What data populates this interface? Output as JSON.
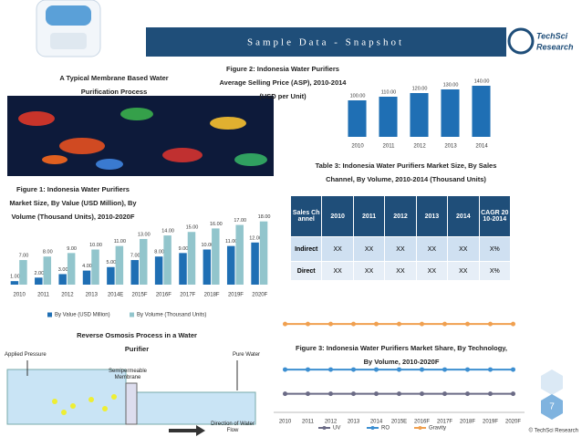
{
  "header": {
    "title": "Sample Data - Snapshot"
  },
  "logo": {
    "line1": "TechSci",
    "line2": "Research"
  },
  "captions": {
    "membrane": "A Typical Membrane Based Water Purification Process",
    "ro": "Reverse Osmosis Process in a Water Purifier"
  },
  "ro_diagram": {
    "applied_pressure": "Applied Pressure",
    "membrane": "Semipermeable Membrane",
    "pure_water": "Pure Water",
    "flow": "Direction of Water Flow"
  },
  "chart_data": [
    {
      "type": "bar",
      "title": "Figure 1: Indonesia Water Purifiers Market Size, By Value (USD Million), By Volume (Thousand Units), 2010-2020F",
      "categories": [
        "2010",
        "2011",
        "2012",
        "2013",
        "2014E",
        "2015F",
        "2016F",
        "2017F",
        "2018F",
        "2019F",
        "2020F"
      ],
      "series": [
        {
          "name": "By Value (USD Million)",
          "color": "#1f6fb4",
          "values": [
            1,
            2,
            3,
            4,
            5,
            7,
            8,
            9,
            10,
            11,
            12
          ],
          "value_labels": [
            "1.00",
            "2.00",
            "3.00",
            "4.00",
            "5.00",
            "7.00",
            "8.00",
            "9.00",
            "10.00",
            "11.00",
            "12.00"
          ]
        },
        {
          "name": "By Volume (Thousand Units)",
          "color": "#92c5cc",
          "values": [
            7,
            8,
            9,
            10,
            11,
            13,
            14,
            15,
            16,
            17,
            18
          ],
          "value_labels": [
            "7.00",
            "8.00",
            "9.00",
            "10.00",
            "11.00",
            "13.00",
            "14.00",
            "15.00",
            "16.00",
            "17.00",
            "18.00"
          ]
        }
      ],
      "ylim": [
        0,
        20
      ],
      "legend": "bottom"
    },
    {
      "type": "bar",
      "title": "Figure 2: Indonesia Water Purifiers Average Selling Price (ASP), 2010-2014 (USD per Unit)",
      "categories": [
        "2010",
        "2011",
        "2012",
        "2013",
        "2014"
      ],
      "values": [
        100,
        110,
        120,
        130,
        140
      ],
      "value_labels": [
        "100.00",
        "110.00",
        "120.00",
        "130.00",
        "140.00"
      ],
      "color": "#1f6fb4",
      "ylim": [
        0,
        150
      ]
    },
    {
      "type": "line",
      "title": "Figure 3: Indonesia Water Purifiers Market Share, By Technology, By Volume, 2010-2020F",
      "categories": [
        "2010",
        "2011",
        "2012",
        "2013",
        "2014",
        "2015E",
        "2016F",
        "2017F",
        "2018F",
        "2019F",
        "2020F"
      ],
      "series": [
        {
          "name": "UV",
          "color": "#6b6b86",
          "values": [
            20,
            20,
            20,
            20,
            20,
            20,
            20,
            20,
            20,
            20,
            20
          ]
        },
        {
          "name": "RO",
          "color": "#3d8fd1",
          "values": [
            46,
            46,
            46,
            46,
            46,
            46,
            46,
            46,
            46,
            46,
            46
          ]
        },
        {
          "name": "Gravity",
          "color": "#f0a050",
          "values": [
            95,
            95,
            95,
            95,
            95,
            95,
            95,
            95,
            95,
            95,
            95
          ]
        }
      ],
      "ylim": [
        0,
        100
      ],
      "legend": "bottom"
    }
  ],
  "table": {
    "title": "Table 3: Indonesia Water Purifiers Market Size, By Sales Channel, By Volume, 2010-2014 (Thousand Units)",
    "header": [
      "Sales Channel",
      "2010",
      "2011",
      "2012",
      "2013",
      "2014",
      "CAGR 2010-2014"
    ],
    "rows": [
      [
        "Indirect",
        "XX",
        "XX",
        "XX",
        "XX",
        "XX",
        "X%"
      ],
      [
        "Direct",
        "XX",
        "XX",
        "XX",
        "XX",
        "XX",
        "X%"
      ]
    ]
  },
  "page_number": 7,
  "footer": "© TechSci Research"
}
